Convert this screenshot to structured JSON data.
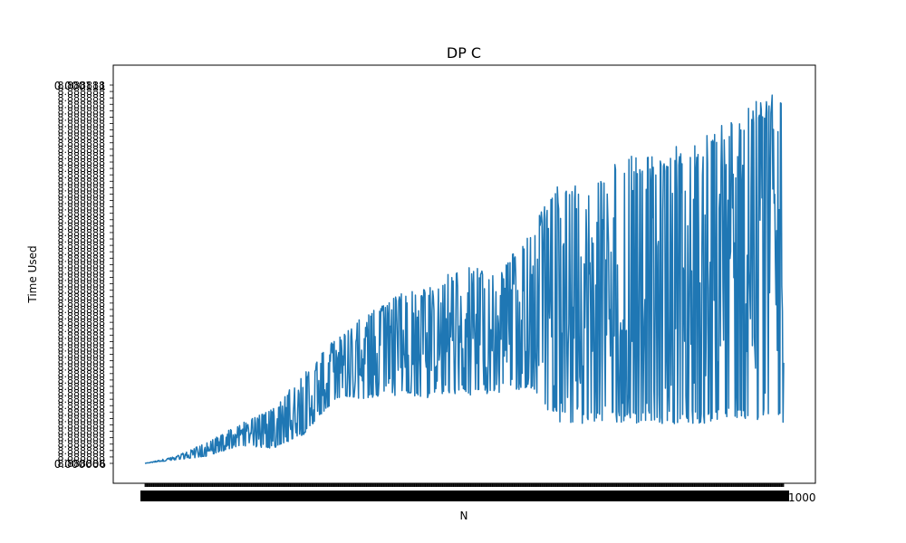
{
  "chart_data": {
    "type": "line",
    "title": "DP C",
    "xlabel": "N",
    "ylabel": "Time Used",
    "grid": false,
    "legend": "none",
    "line_color": "#1f77b4",
    "x_range": [
      1,
      1000
    ],
    "x_tick_labels_visible": [
      "1000"
    ],
    "y_tick_labels_visible": [
      "0.000006",
      "0.000111"
    ],
    "series": [
      {
        "note_free": true,
        "envelope_x": [
          1,
          50,
          100,
          150,
          200,
          250,
          300,
          350,
          400,
          450,
          500,
          550,
          600,
          650,
          700,
          750,
          800,
          850,
          900,
          950,
          1000
        ],
        "envelope_max": [
          6e-06,
          8e-06,
          1.2e-05,
          1.7e-05,
          2.1e-05,
          3.1e-05,
          4.1e-05,
          4.8e-05,
          5.3e-05,
          5.5e-05,
          6.2e-05,
          5.8e-05,
          7e-05,
          8.4e-05,
          8.4e-05,
          9.1e-05,
          9.2e-05,
          9.5e-05,
          0.0001,
          0.000106,
          0.000111
        ],
        "envelope_min": [
          6e-06,
          7e-06,
          8e-06,
          1.1e-05,
          1e-05,
          1.4e-05,
          2.4e-05,
          2.4e-05,
          2.5e-05,
          2.4e-05,
          2.5e-05,
          2.5e-05,
          2.7e-05,
          1.7e-05,
          1.7e-05,
          1.7e-05,
          1.7e-05,
          1.7e-05,
          1.7e-05,
          1.7e-05,
          1.7e-05
        ]
      }
    ]
  }
}
